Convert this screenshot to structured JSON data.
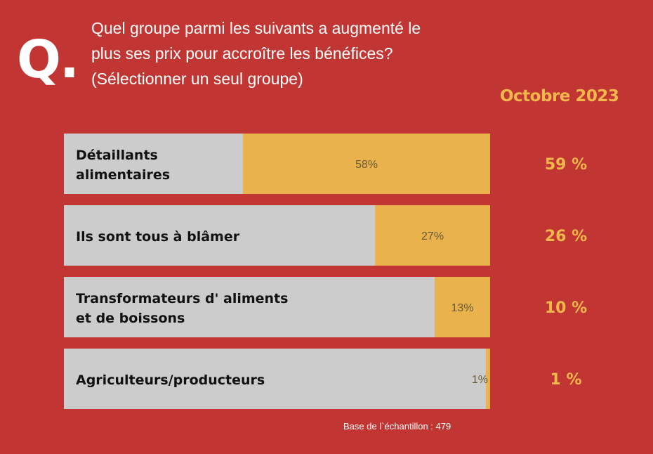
{
  "header": {
    "q_mark": "Q.",
    "question_lines": [
      "Quel groupe parmi les suivants a augmenté le",
      "plus ses prix pour accroître les bénéfices?",
      "(Sélectionner un seul groupe)"
    ],
    "comparison_label": "Octobre 2023"
  },
  "footnote": "Base de l`échantillon : 479",
  "colors": {
    "background": "#c13532",
    "bar_track": "#cdcccd",
    "bar_fill": "#e9b24c",
    "accent_text": "#f2b84b"
  },
  "chart_data": {
    "type": "bar",
    "orientation": "horizontal",
    "xlim": [
      0,
      100
    ],
    "categories": [
      [
        "Détaillants",
        "alimentaires"
      ],
      [
        "Ils sont tous à blâmer"
      ],
      [
        "Transformateurs d' aliments",
        "et de boissons"
      ],
      [
        "Agriculteurs/producteurs"
      ]
    ],
    "series": [
      {
        "values": [
          58,
          27,
          13,
          1
        ],
        "labels": [
          "58%",
          "27%",
          "13%",
          "1%"
        ]
      },
      {
        "name": "Octobre 2023",
        "values": [
          59,
          26,
          10,
          1
        ],
        "labels": [
          "59 %",
          "26 %",
          "10 %",
          "1 %"
        ]
      }
    ]
  }
}
